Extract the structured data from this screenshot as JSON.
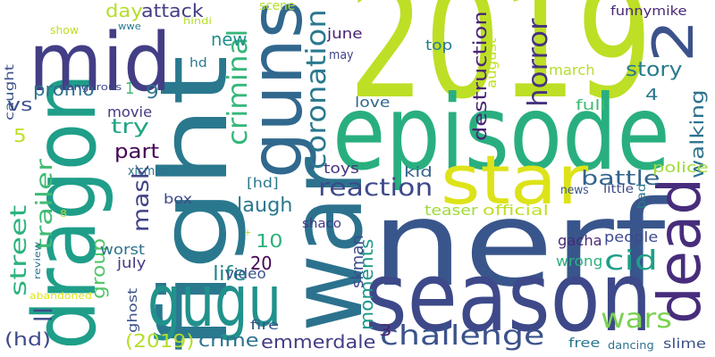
{
  "canvas": {
    "background": "#ffffff"
  },
  "colormap": "viridis",
  "words": [
    {
      "id": "w_2019",
      "text": "2019",
      "color": "#bddf26"
    },
    {
      "id": "w_nerf",
      "text": "nerf",
      "color": "#39568c"
    },
    {
      "id": "w_episode",
      "text": "episode",
      "color": "#29af7f"
    },
    {
      "id": "w_season",
      "text": "season",
      "color": "#3e4989"
    },
    {
      "id": "w_war",
      "text": "war",
      "color": "#2c728e"
    },
    {
      "id": "w_fight",
      "text": "fight",
      "color": "#2a788e"
    },
    {
      "id": "w_dragon",
      "text": "dragon",
      "color": "#1f9e89"
    },
    {
      "id": "w_guns",
      "text": "guns",
      "color": "#31688e"
    },
    {
      "id": "w_mid",
      "text": "mid",
      "color": "#433e85"
    },
    {
      "id": "w_gugu",
      "text": "gugu",
      "color": "#21918c"
    },
    {
      "id": "w_star",
      "text": "star",
      "color": "#dde318"
    },
    {
      "id": "w_dead",
      "text": "dead",
      "color": "#472d7b"
    },
    {
      "id": "w_2",
      "text": "2",
      "color": "#3b528b"
    },
    {
      "id": "w_coronation",
      "text": "coronation",
      "color": "#2a788e"
    },
    {
      "id": "w_criminal",
      "text": "criminal",
      "color": "#35b779"
    },
    {
      "id": "w_reaction",
      "text": "reaction",
      "color": "#3e4989"
    },
    {
      "id": "w_challenge",
      "text": "challenge",
      "color": "#3b528b"
    },
    {
      "id": "w_wars",
      "text": "wars",
      "color": "#7ad151"
    },
    {
      "id": "w_cid",
      "text": "cid",
      "color": "#1f9e89"
    },
    {
      "id": "w_horror",
      "text": "horror",
      "color": "#46337e"
    },
    {
      "id": "w_destruction",
      "text": "destruction",
      "color": "#482475"
    },
    {
      "id": "w_mask",
      "text": "mask",
      "color": "#414487"
    },
    {
      "id": "w_trailer",
      "text": "trailer",
      "color": "#3fbc73"
    },
    {
      "id": "w_street",
      "text": "street",
      "color": "#2db27d"
    },
    {
      "id": "w_walking",
      "text": "walking",
      "color": "#2c728e"
    },
    {
      "id": "w_moments",
      "text": "moments",
      "color": "#1f988b"
    },
    {
      "id": "w_group",
      "text": "group",
      "color": "#52c569"
    },
    {
      "id": "w_battle",
      "text": "battle",
      "color": "#33638d"
    },
    {
      "id": "w_story",
      "text": "story",
      "color": "#297b8e"
    },
    {
      "id": "w_laugh",
      "text": "laugh",
      "color": "#2a788e"
    },
    {
      "id": "w_life",
      "text": "life",
      "color": "#23898e"
    },
    {
      "id": "w_part",
      "text": "part",
      "color": "#440154"
    },
    {
      "id": "w_try",
      "text": "try",
      "color": "#21a685"
    },
    {
      "id": "w_crime",
      "text": "crime",
      "color": "#2c728e"
    },
    {
      "id": "w_emmerdale",
      "text": "emmerdale",
      "color": "#433e85"
    },
    {
      "id": "w_hd_paren",
      "text": "(hd)",
      "color": "#3e4989"
    },
    {
      "id": "w_2019_paren",
      "text": "(2019)",
      "color": "#b5de2b"
    },
    {
      "id": "w_promo",
      "text": "promo",
      "color": "#2d708e"
    },
    {
      "id": "w_attack",
      "text": "attack",
      "color": "#433e85"
    },
    {
      "id": "w_day",
      "text": "day",
      "color": "#b5de2b"
    },
    {
      "id": "w_new",
      "text": "new",
      "color": "#21918c"
    },
    {
      "id": "w_vs",
      "text": "vs",
      "color": "#3b528b"
    },
    {
      "id": "w_5",
      "text": "5",
      "color": "#bddf26"
    },
    {
      "id": "w_10",
      "text": "10",
      "color": "#2db27d"
    },
    {
      "id": "w_20",
      "text": "20",
      "color": "#440154"
    },
    {
      "id": "w_9",
      "text": "9",
      "color": "#2c728e"
    },
    {
      "id": "w_1",
      "text": "1",
      "color": "#3fbc73"
    },
    {
      "id": "w_4",
      "text": "4",
      "color": "#2a788e"
    },
    {
      "id": "w_3",
      "text": "3",
      "color": "#482475"
    },
    {
      "id": "w_skman",
      "text": "skman",
      "color": "#3e4989"
    },
    {
      "id": "w_teaser",
      "text": "teaser",
      "color": "#a0da39"
    },
    {
      "id": "w_official",
      "text": "official",
      "color": "#bddf26"
    },
    {
      "id": "w_gacha",
      "text": "gacha",
      "color": "#482878"
    },
    {
      "id": "w_people",
      "text": "people",
      "color": "#3e4989"
    },
    {
      "id": "w_wrong",
      "text": "wrong",
      "color": "#2db27d"
    },
    {
      "id": "w_police",
      "text": "police",
      "color": "#a0da39"
    },
    {
      "id": "w_full",
      "text": "full",
      "color": "#3fbc73"
    },
    {
      "id": "w_movie",
      "text": "movie",
      "color": "#443a83"
    },
    {
      "id": "w_worst",
      "text": "worst",
      "color": "#2c728e"
    },
    {
      "id": "w_video",
      "text": "video",
      "color": "#3b528b"
    },
    {
      "id": "w_july",
      "text": "july",
      "color": "#443a83"
    },
    {
      "id": "w_toys",
      "text": "toys",
      "color": "#46337e"
    },
    {
      "id": "w_kid",
      "text": "kid",
      "color": "#33638d"
    },
    {
      "id": "w_love",
      "text": "love",
      "color": "#31688e"
    },
    {
      "id": "w_june",
      "text": "june",
      "color": "#481f70"
    },
    {
      "id": "w_top",
      "text": "top",
      "color": "#2a788e"
    },
    {
      "id": "w_march",
      "text": "march",
      "color": "#b5de2b"
    },
    {
      "id": "w_august",
      "text": "august",
      "color": "#c2df23"
    },
    {
      "id": "w_may",
      "text": "may",
      "color": "#414487"
    },
    {
      "id": "w_scene",
      "text": "scene",
      "color": "#b5de2b"
    },
    {
      "id": "w_funnymike",
      "text": "funnymike",
      "color": "#482677"
    },
    {
      "id": "w_shaco",
      "text": "shaco",
      "color": "#443983"
    },
    {
      "id": "w_fire",
      "text": "fire",
      "color": "#3b528b"
    },
    {
      "id": "w_box",
      "text": "box",
      "color": "#3e4989"
    },
    {
      "id": "w_hd_bracket",
      "text": "[hd]",
      "color": "#2a788e"
    },
    {
      "id": "w_hd",
      "text": "hd",
      "color": "#2a788e"
    },
    {
      "id": "w_xicman",
      "text": "xicman",
      "color": "#2c728e"
    },
    {
      "id": "w_news",
      "text": "news",
      "color": "#3b528b"
    },
    {
      "id": "w_little",
      "text": "little",
      "color": "#3e4989"
    },
    {
      "id": "w_bad",
      "text": "bad",
      "color": "#2a788e"
    },
    {
      "id": "w_slime",
      "text": "slime",
      "color": "#3b528b"
    },
    {
      "id": "w_dancing",
      "text": "dancing",
      "color": "#2c728e"
    },
    {
      "id": "w_free",
      "text": "free",
      "color": "#2a788e"
    },
    {
      "id": "w_ghost",
      "text": "ghost",
      "color": "#3b528b"
    },
    {
      "id": "w_caught",
      "text": "caught",
      "color": "#3b528b"
    },
    {
      "id": "w_show",
      "text": "show",
      "color": "#bddf26"
    },
    {
      "id": "w_wwe",
      "text": "wwe",
      "color": "#2a788e"
    },
    {
      "id": "w_hindi",
      "text": "hindi",
      "color": "#b5de2b"
    },
    {
      "id": "w_dangerous",
      "text": "dangerous",
      "color": "#3e4989"
    },
    {
      "id": "w_review",
      "text": "review",
      "color": "#2c728e"
    },
    {
      "id": "w_abandoned",
      "text": "abandoned",
      "color": "#dde318"
    },
    {
      "id": "w_8",
      "text": "8",
      "color": "#b5de2b"
    },
    {
      "id": "w_plus",
      "text": "+",
      "color": "#b5de2b"
    },
    {
      "id": "w_bars",
      "text": "||",
      "color": "#3e4989"
    }
  ]
}
